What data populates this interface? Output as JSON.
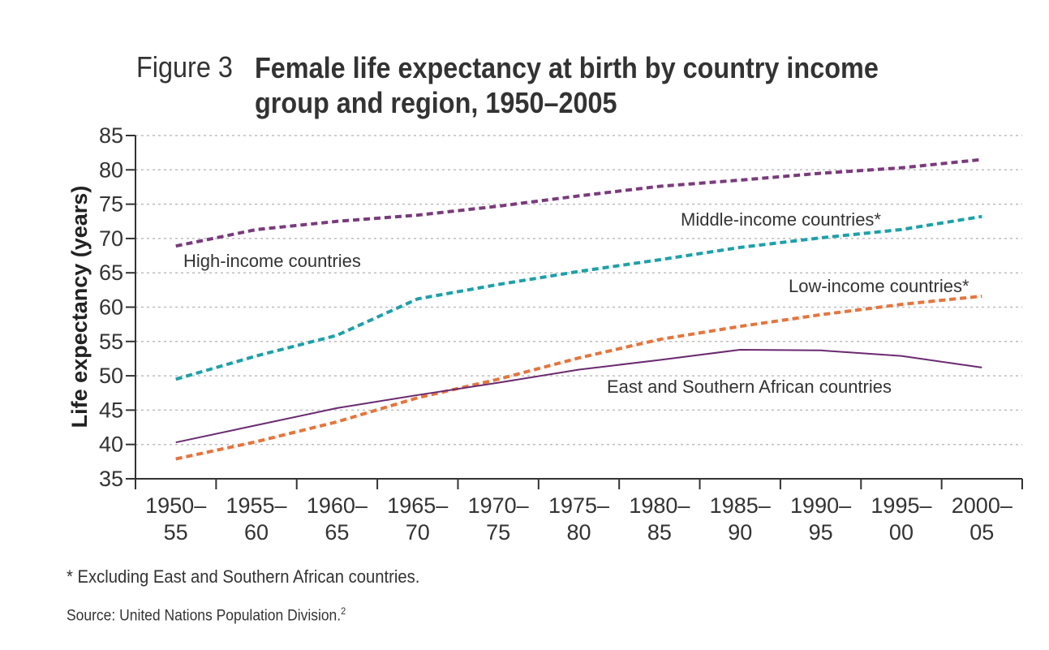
{
  "figure": {
    "label": "Figure 3",
    "title": "Female life expectancy at birth by country income group and region, 1950–2005"
  },
  "footnote": "* Excluding East and Southern African countries.",
  "source": {
    "text": "Source: United Nations Population Division.",
    "superscript": "2"
  },
  "chart_data": {
    "type": "line",
    "title": "Female life expectancy at birth by country income group and region, 1950–2005",
    "xlabel": "",
    "ylabel": "Life expectancy (years)",
    "ylim": [
      35,
      85
    ],
    "yticks": [
      35,
      40,
      45,
      50,
      55,
      60,
      65,
      70,
      75,
      80,
      85
    ],
    "grid": "horizontal dotted",
    "categories": [
      [
        "1950–",
        "55"
      ],
      [
        "1955–",
        "60"
      ],
      [
        "1960–",
        "65"
      ],
      [
        "1965–",
        "70"
      ],
      [
        "1970–",
        "75"
      ],
      [
        "1975–",
        "80"
      ],
      [
        "1980–",
        "85"
      ],
      [
        "1985–",
        "90"
      ],
      [
        "1990–",
        "95"
      ],
      [
        "1995–",
        "00"
      ],
      [
        "2000–",
        "05"
      ]
    ],
    "series": [
      {
        "name": "High-income countries",
        "style": "dashed",
        "color": "#7b3a7d",
        "values": [
          68.9,
          71.3,
          72.5,
          73.4,
          74.7,
          76.2,
          77.6,
          78.5,
          79.5,
          80.3,
          81.5
        ]
      },
      {
        "name": "Middle-income countries*",
        "style": "dashed",
        "color": "#1ba1aa",
        "values": [
          49.5,
          52.9,
          55.9,
          61.2,
          63.3,
          65.2,
          66.9,
          68.7,
          70.1,
          71.3,
          73.2
        ]
      },
      {
        "name": "Low-income countries*",
        "style": "dashed",
        "color": "#e8743b",
        "values": [
          37.9,
          40.4,
          43.3,
          46.8,
          49.5,
          52.6,
          55.3,
          57.2,
          58.9,
          60.4,
          61.6
        ]
      },
      {
        "name": "East and Southern African countries",
        "style": "solid",
        "color": "#6a2a70",
        "values": [
          40.3,
          42.8,
          45.3,
          47.2,
          49.0,
          50.9,
          52.3,
          53.8,
          53.7,
          52.9,
          51.2
        ]
      }
    ]
  }
}
